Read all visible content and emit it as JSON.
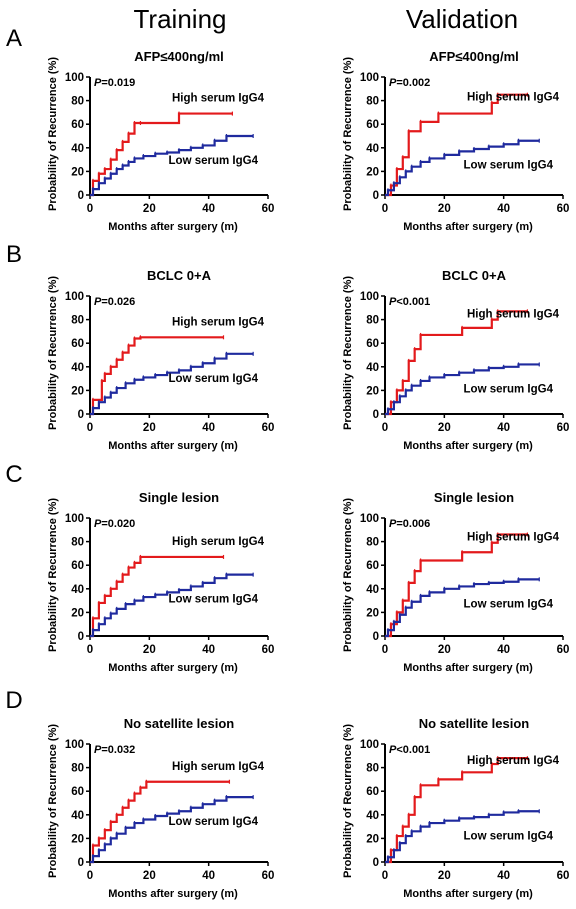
{
  "columns": [
    "Training",
    "Validation"
  ],
  "rows": [
    "A",
    "B",
    "C",
    "D"
  ],
  "colors": {
    "high": "#e31a1c",
    "low": "#1f2a9e",
    "axis": "#000000"
  },
  "chart_data": [
    {
      "type": "line",
      "row": "A",
      "column": "Training",
      "title": "AFP≤400ng/ml",
      "p_label": "P",
      "p_text": "=0.019",
      "xlabel": "Months after surgery (m)",
      "ylabel": "Probability of Recurrence (%)",
      "xlim": [
        0,
        60
      ],
      "ylim": [
        0,
        100
      ],
      "xticks": [
        0,
        20,
        40,
        60
      ],
      "yticks": [
        0,
        20,
        40,
        60,
        80,
        100
      ],
      "series": [
        {
          "name": "High serum IgG4",
          "key": "high",
          "x": [
            0,
            1,
            3,
            5,
            7,
            9,
            11,
            13,
            15,
            17,
            30,
            48
          ],
          "y": [
            0,
            12,
            18,
            22,
            30,
            38,
            45,
            52,
            61,
            61,
            69,
            69
          ]
        },
        {
          "name": "Low serum IgG4",
          "key": "low",
          "x": [
            0,
            1,
            3,
            5,
            7,
            9,
            11,
            13,
            15,
            18,
            22,
            26,
            30,
            34,
            38,
            42,
            46,
            55
          ],
          "y": [
            0,
            5,
            10,
            14,
            18,
            22,
            25,
            28,
            31,
            33,
            35,
            36,
            38,
            40,
            42,
            46,
            50,
            50
          ]
        }
      ]
    },
    {
      "type": "line",
      "row": "A",
      "column": "Validation",
      "title": "AFP≤400ng/ml",
      "p_label": "P",
      "p_text": "=0.002",
      "xlabel": "Months after surgery (m)",
      "ylabel": "Probability of Recurrence (%)",
      "xlim": [
        0,
        60
      ],
      "ylim": [
        0,
        100
      ],
      "xticks": [
        0,
        20,
        40,
        60
      ],
      "yticks": [
        0,
        20,
        40,
        60,
        80,
        100
      ],
      "series": [
        {
          "name": "High serum IgG4",
          "key": "high",
          "x": [
            0,
            2,
            4,
            6,
            8,
            12,
            18,
            36,
            38,
            48
          ],
          "y": [
            0,
            8,
            22,
            32,
            54,
            62,
            69,
            78,
            85,
            85
          ]
        },
        {
          "name": "Low serum IgG4",
          "key": "low",
          "x": [
            0,
            1,
            3,
            5,
            7,
            9,
            12,
            15,
            20,
            25,
            30,
            35,
            40,
            45,
            52
          ],
          "y": [
            0,
            4,
            10,
            15,
            20,
            24,
            28,
            31,
            34,
            37,
            39,
            41,
            43,
            46,
            46
          ]
        }
      ]
    },
    {
      "type": "line",
      "row": "B",
      "column": "Training",
      "title": "BCLC 0+A",
      "p_label": "P",
      "p_text": "=0.026",
      "xlabel": "Months after surgery (m)",
      "ylabel": "Probability of Recurrence (%)",
      "xlim": [
        0,
        60
      ],
      "ylim": [
        0,
        100
      ],
      "xticks": [
        0,
        20,
        40,
        60
      ],
      "yticks": [
        0,
        20,
        40,
        60,
        80,
        100
      ],
      "series": [
        {
          "name": "High serum IgG4",
          "key": "high",
          "x": [
            0,
            1,
            4,
            5,
            7,
            9,
            11,
            13,
            15,
            17,
            45
          ],
          "y": [
            0,
            12,
            28,
            34,
            40,
            46,
            52,
            58,
            64,
            65,
            65
          ]
        },
        {
          "name": "Low serum IgG4",
          "key": "low",
          "x": [
            0,
            1,
            3,
            5,
            7,
            9,
            12,
            15,
            18,
            22,
            26,
            30,
            34,
            38,
            42,
            46,
            55
          ],
          "y": [
            0,
            5,
            10,
            14,
            18,
            22,
            26,
            29,
            31,
            33,
            35,
            37,
            40,
            43,
            47,
            51,
            51
          ]
        }
      ]
    },
    {
      "type": "line",
      "row": "B",
      "column": "Validation",
      "title": "BCLC 0+A",
      "p_label": "P",
      "p_text": "<0.001",
      "xlabel": "Months after surgery (m)",
      "ylabel": "Probability of Recurrence (%)",
      "xlim": [
        0,
        60
      ],
      "ylim": [
        0,
        100
      ],
      "xticks": [
        0,
        20,
        40,
        60
      ],
      "yticks": [
        0,
        20,
        40,
        60,
        80,
        100
      ],
      "series": [
        {
          "name": "High serum IgG4",
          "key": "high",
          "x": [
            0,
            2,
            4,
            6,
            8,
            10,
            12,
            26,
            36,
            38,
            48
          ],
          "y": [
            0,
            10,
            20,
            28,
            45,
            55,
            67,
            73,
            80,
            87,
            87
          ]
        },
        {
          "name": "Low serum IgG4",
          "key": "low",
          "x": [
            0,
            1,
            3,
            5,
            7,
            9,
            12,
            15,
            20,
            25,
            30,
            35,
            40,
            45,
            52
          ],
          "y": [
            0,
            4,
            10,
            15,
            20,
            24,
            28,
            31,
            33,
            35,
            37,
            39,
            40,
            42,
            42
          ]
        }
      ]
    },
    {
      "type": "line",
      "row": "C",
      "column": "Training",
      "title": "Single lesion",
      "p_label": "P",
      "p_text": "=0.020",
      "xlabel": "Months after surgery (m)",
      "ylabel": "Probability of Recurrence (%)",
      "xlim": [
        0,
        60
      ],
      "ylim": [
        0,
        100
      ],
      "xticks": [
        0,
        20,
        40,
        60
      ],
      "yticks": [
        0,
        20,
        40,
        60,
        80,
        100
      ],
      "series": [
        {
          "name": "High serum IgG4",
          "key": "high",
          "x": [
            0,
            1,
            3,
            5,
            7,
            9,
            11,
            13,
            15,
            17,
            45
          ],
          "y": [
            0,
            15,
            28,
            34,
            40,
            46,
            52,
            58,
            62,
            67,
            67
          ]
        },
        {
          "name": "Low serum IgG4",
          "key": "low",
          "x": [
            0,
            1,
            3,
            5,
            7,
            9,
            12,
            15,
            18,
            22,
            26,
            30,
            34,
            38,
            42,
            46,
            55
          ],
          "y": [
            0,
            5,
            10,
            15,
            19,
            23,
            27,
            30,
            33,
            35,
            37,
            39,
            42,
            45,
            49,
            52,
            52
          ]
        }
      ]
    },
    {
      "type": "line",
      "row": "C",
      "column": "Validation",
      "title": "Single lesion",
      "p_label": "P",
      "p_text": "=0.006",
      "xlabel": "Months after surgery (m)",
      "ylabel": "Probability of Recurrence (%)",
      "xlim": [
        0,
        60
      ],
      "ylim": [
        0,
        100
      ],
      "xticks": [
        0,
        20,
        40,
        60
      ],
      "yticks": [
        0,
        20,
        40,
        60,
        80,
        100
      ],
      "series": [
        {
          "name": "High serum IgG4",
          "key": "high",
          "x": [
            0,
            2,
            4,
            6,
            8,
            10,
            12,
            26,
            36,
            38,
            48
          ],
          "y": [
            0,
            10,
            20,
            30,
            45,
            55,
            64,
            71,
            79,
            86,
            86
          ]
        },
        {
          "name": "Low serum IgG4",
          "key": "low",
          "x": [
            0,
            1,
            3,
            5,
            7,
            9,
            12,
            15,
            20,
            25,
            30,
            35,
            40,
            45,
            52
          ],
          "y": [
            0,
            5,
            12,
            18,
            24,
            29,
            34,
            37,
            40,
            42,
            44,
            45,
            46,
            48,
            48
          ]
        }
      ]
    },
    {
      "type": "line",
      "row": "D",
      "column": "Training",
      "title": "No satellite lesion",
      "p_label": "P",
      "p_text": "=0.032",
      "xlabel": "Months after surgery (m)",
      "ylabel": "Probability of Recurrence (%)",
      "xlim": [
        0,
        60
      ],
      "ylim": [
        0,
        100
      ],
      "xticks": [
        0,
        20,
        40,
        60
      ],
      "yticks": [
        0,
        20,
        40,
        60,
        80,
        100
      ],
      "series": [
        {
          "name": "High serum IgG4",
          "key": "high",
          "x": [
            0,
            1,
            3,
            5,
            7,
            9,
            11,
            13,
            15,
            17,
            19,
            47
          ],
          "y": [
            0,
            14,
            20,
            27,
            34,
            40,
            46,
            52,
            58,
            63,
            68,
            68
          ]
        },
        {
          "name": "Low serum IgG4",
          "key": "low",
          "x": [
            0,
            1,
            3,
            5,
            7,
            9,
            12,
            15,
            18,
            22,
            26,
            30,
            34,
            38,
            42,
            46,
            55
          ],
          "y": [
            0,
            5,
            10,
            15,
            20,
            24,
            29,
            33,
            36,
            39,
            41,
            43,
            46,
            49,
            52,
            55,
            55
          ]
        }
      ]
    },
    {
      "type": "line",
      "row": "D",
      "column": "Validation",
      "title": "No satellite lesion",
      "p_label": "P",
      "p_text": "<0.001",
      "xlabel": "Months after surgery (m)",
      "ylabel": "Probability of Recurrence (%)",
      "xlim": [
        0,
        60
      ],
      "ylim": [
        0,
        100
      ],
      "xticks": [
        0,
        20,
        40,
        60
      ],
      "yticks": [
        0,
        20,
        40,
        60,
        80,
        100
      ],
      "series": [
        {
          "name": "High serum IgG4",
          "key": "high",
          "x": [
            0,
            2,
            4,
            6,
            8,
            10,
            12,
            18,
            26,
            36,
            38,
            48
          ],
          "y": [
            0,
            10,
            22,
            30,
            40,
            55,
            65,
            70,
            76,
            83,
            88,
            88
          ]
        },
        {
          "name": "Low serum IgG4",
          "key": "low",
          "x": [
            0,
            1,
            3,
            5,
            7,
            9,
            12,
            15,
            20,
            25,
            30,
            35,
            40,
            45,
            52
          ],
          "y": [
            0,
            4,
            10,
            16,
            22,
            26,
            30,
            33,
            35,
            37,
            38,
            40,
            42,
            43,
            43
          ]
        }
      ]
    }
  ]
}
